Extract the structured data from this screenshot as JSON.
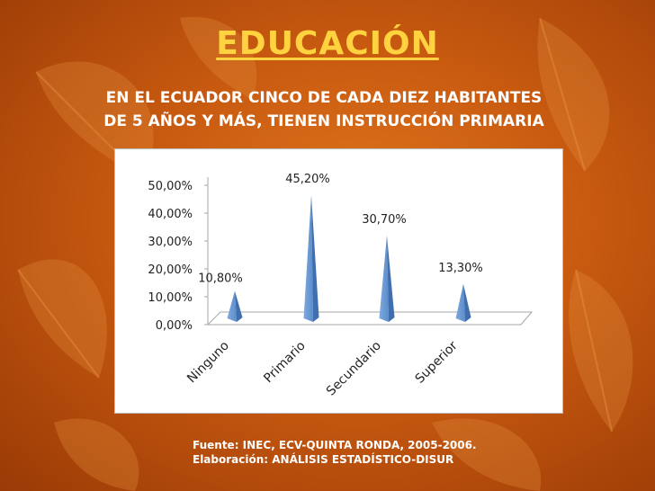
{
  "slide": {
    "title": "EDUCACIÓN",
    "subtitle": "EN EL ECUADOR CINCO DE CADA DIEZ HABITANTES\nDE  5 AÑOS Y MÁS, TIENEN INSTRUCCIÓN PRIMARIA",
    "source_line1": "Fuente: INEC, ECV-QUINTA RONDA, 2005-2006.",
    "source_line2": "Elaboración: ANÁLISIS ESTADÍSTICO-DISUR"
  },
  "colors": {
    "title": "#ffd23f",
    "bar_light": "#7ea9dd",
    "bar_dark": "#3f6fae",
    "background": "#c85a10"
  },
  "chart_data": {
    "type": "bar",
    "style": "3d-cone",
    "categories": [
      "Ninguno",
      "Primario",
      "Secundario",
      "Superior"
    ],
    "values": [
      10.8,
      45.2,
      30.7,
      13.3
    ],
    "data_labels": [
      "10,80%",
      "45,20%",
      "30,70%",
      "13,30%"
    ],
    "y_ticks": [
      "0,00%",
      "10,00%",
      "20,00%",
      "30,00%",
      "40,00%",
      "50,00%"
    ],
    "ylim": [
      0,
      50
    ],
    "grid": false,
    "legend": "none"
  }
}
